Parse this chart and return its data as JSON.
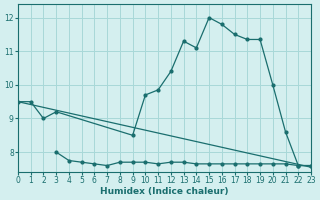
{
  "xlabel": "Humidex (Indice chaleur)",
  "xlim": [
    0,
    23
  ],
  "ylim": [
    7.4,
    12.4
  ],
  "yticks": [
    8,
    9,
    10,
    11,
    12
  ],
  "xticks": [
    0,
    1,
    2,
    3,
    4,
    5,
    6,
    7,
    8,
    9,
    10,
    11,
    12,
    13,
    14,
    15,
    16,
    17,
    18,
    19,
    20,
    21,
    22,
    23
  ],
  "bg_color": "#d4efef",
  "grid_color": "#a8d8d8",
  "line_color": "#1a6e6e",
  "line1_x": [
    0,
    1,
    2,
    3,
    9,
    10,
    11,
    12,
    13,
    14,
    15,
    16,
    17,
    18,
    19,
    20,
    21,
    22,
    23
  ],
  "line1_y": [
    9.5,
    9.5,
    9.0,
    9.2,
    8.5,
    9.7,
    9.85,
    10.4,
    11.3,
    11.1,
    12.0,
    11.8,
    11.5,
    11.35,
    11.35,
    10.0,
    8.6,
    7.6,
    7.6
  ],
  "line2_x": [
    0,
    23
  ],
  "line2_y": [
    9.5,
    7.55
  ],
  "line3_x": [
    3,
    4,
    5,
    6,
    7,
    8,
    9,
    10,
    11,
    12,
    13,
    14,
    15,
    16,
    17,
    18,
    19,
    20,
    21,
    22,
    23
  ],
  "line3_y": [
    8.0,
    7.75,
    7.7,
    7.65,
    7.6,
    7.7,
    7.7,
    7.7,
    7.65,
    7.7,
    7.7,
    7.65,
    7.65,
    7.65,
    7.65,
    7.65,
    7.65,
    7.65,
    7.65,
    7.6,
    7.6
  ]
}
